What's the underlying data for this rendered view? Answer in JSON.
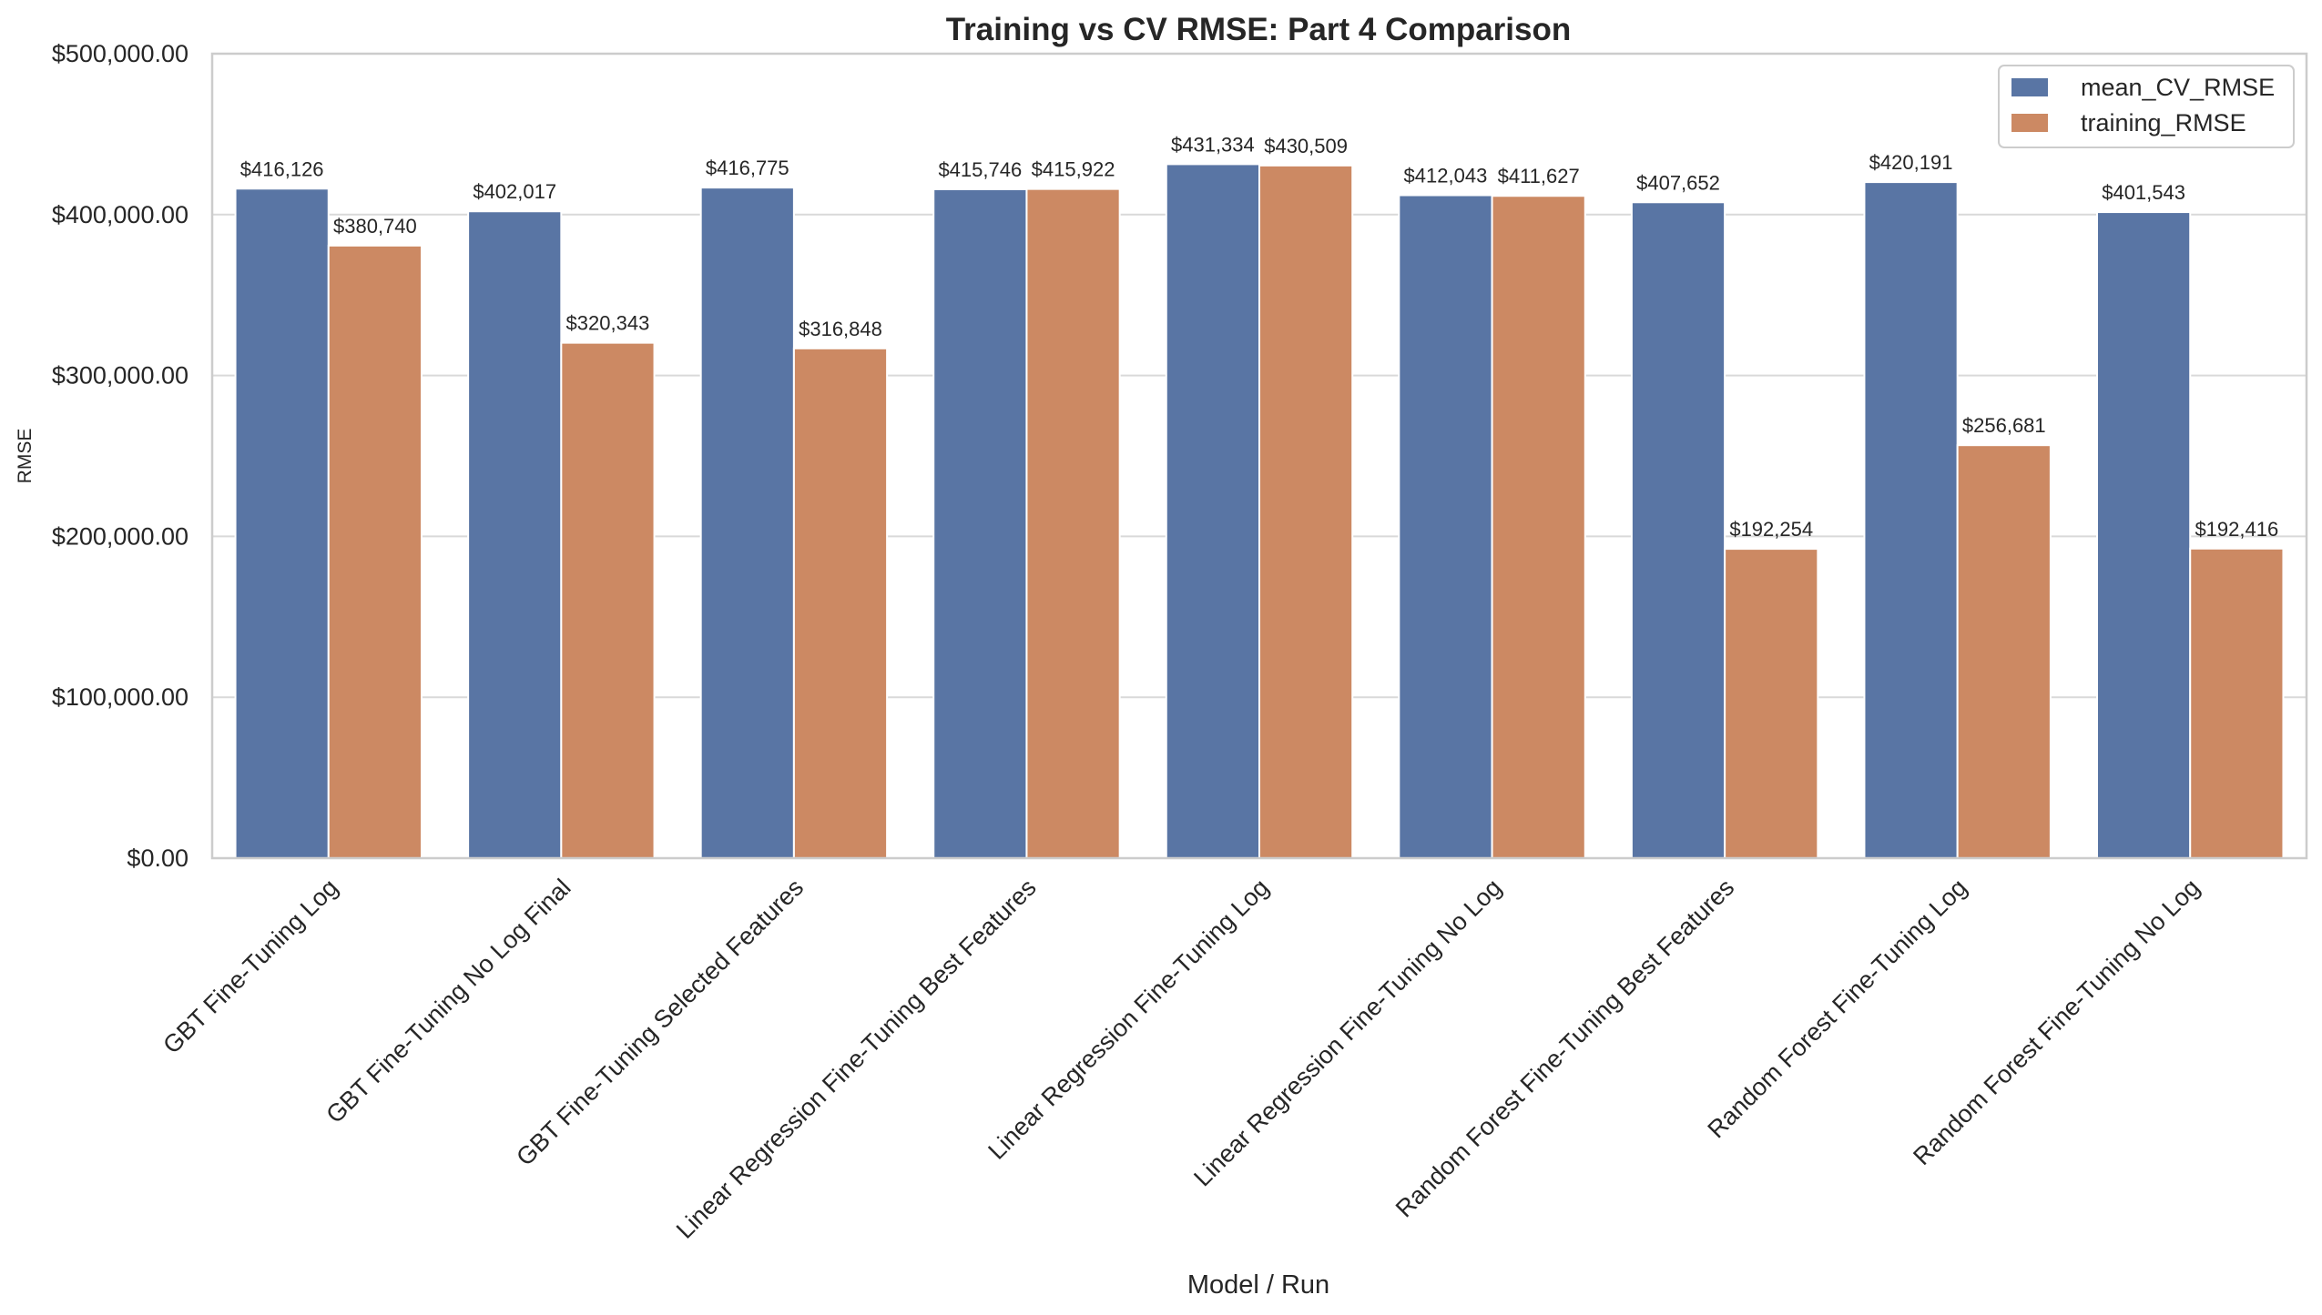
{
  "chart_data": {
    "type": "bar",
    "title": "Training vs CV RMSE: Part 4 Comparison",
    "xlabel": "Model / Run",
    "ylabel": "RMSE",
    "ylim": [
      0,
      500000
    ],
    "yticks": [
      "$0.00",
      "$100,000.00",
      "$200,000.00",
      "$300,000.00",
      "$400,000.00",
      "$500,000.00"
    ],
    "grid": true,
    "legend_position": "top-right",
    "categories": [
      "GBT Fine-Tuning Log",
      "GBT Fine-Tuning No Log Final",
      "GBT Fine-Tuning Selected Features",
      "Linear Regression Fine-Tuning Best Features",
      "Linear Regression Fine-Tuning Log",
      "Linear Regression Fine-Tuning No Log",
      "Random Forest Fine-Tuning Best Features",
      "Random Forest Fine-Tuning Log",
      "Random Forest Fine-Tuning No Log"
    ],
    "series": [
      {
        "name": "mean_CV_RMSE",
        "color": "#5975a4",
        "values": [
          416126,
          402017,
          416775,
          415746,
          431334,
          412043,
          407652,
          420191,
          401543
        ],
        "labels": [
          "$416,126",
          "$402,017",
          "$416,775",
          "$415,746",
          "$431,334",
          "$412,043",
          "$407,652",
          "$420,191",
          "$401,543"
        ]
      },
      {
        "name": "training_RMSE",
        "color": "#cc8963",
        "values": [
          380740,
          320343,
          316848,
          415922,
          430509,
          411627,
          192254,
          256681,
          192416
        ],
        "labels": [
          "$380,740",
          "$320,343",
          "$316,848",
          "$415,922",
          "$430,509",
          "$411,627",
          "$192,254",
          "$256,681",
          "$192,416"
        ]
      }
    ]
  }
}
